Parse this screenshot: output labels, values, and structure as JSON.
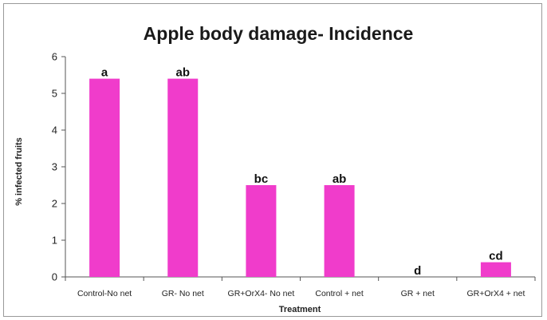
{
  "chart_data": {
    "type": "bar",
    "title": "Apple body damage- Incidence",
    "xlabel": "Treatment",
    "ylabel": "% infected fruits",
    "ylim": [
      0,
      6
    ],
    "yticks": [
      0,
      1,
      2,
      3,
      4,
      5,
      6
    ],
    "categories": [
      "Control-No net",
      "GR- No net",
      "GR+OrX4- No net",
      "Control + net",
      "GR + net",
      "GR+OrX4 + net"
    ],
    "values": [
      5.4,
      5.4,
      2.5,
      2.5,
      0,
      0.4
    ],
    "data_labels": [
      "a",
      "ab",
      "bc",
      "ab",
      "d",
      "cd"
    ],
    "bar_color": "#f03ccb",
    "grid": false,
    "legend": "none"
  }
}
